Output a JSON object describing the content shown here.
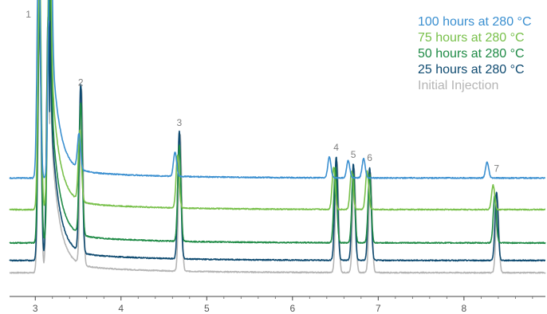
{
  "chart_data": {
    "type": "line",
    "title": "",
    "xlabel": "",
    "ylabel": "",
    "xlim": [
      2.7,
      8.95
    ],
    "x_ticks": [
      3,
      4,
      5,
      6,
      7,
      8
    ],
    "grid": false,
    "legend_placement": "top-right",
    "peak_labels": [
      {
        "label": "1",
        "x": 3.05
      },
      {
        "label": "2",
        "x": 3.53
      },
      {
        "label": "3",
        "x": 4.68
      },
      {
        "label": "4",
        "x": 6.51
      },
      {
        "label": "5",
        "x": 6.71
      },
      {
        "label": "6",
        "x": 6.9
      },
      {
        "label": "7",
        "x": 8.38
      }
    ],
    "series": [
      {
        "name": "100 hours at 280 °C",
        "color": "#3a8fd0",
        "baseline_offset": 0.63,
        "peaks": [
          [
            3.04,
            1.4
          ],
          [
            3.17,
            1.4
          ],
          [
            3.51,
            0.2
          ],
          [
            4.63,
            0.14
          ],
          [
            6.43,
            0.12
          ],
          [
            6.65,
            0.1
          ],
          [
            6.83,
            0.11
          ],
          [
            8.27,
            0.09
          ]
        ]
      },
      {
        "name": "75 hours at 280 °C",
        "color": "#78c04a",
        "baseline_offset": 0.45,
        "peaks": [
          [
            3.05,
            1.4
          ],
          [
            3.16,
            1.4
          ],
          [
            3.52,
            0.4
          ],
          [
            4.66,
            0.3
          ],
          [
            6.48,
            0.24
          ],
          [
            6.69,
            0.22
          ],
          [
            6.87,
            0.22
          ],
          [
            8.34,
            0.14
          ]
        ]
      },
      {
        "name": "50 hours at 280 °C",
        "color": "#1e8a45",
        "baseline_offset": 0.26,
        "peaks": [
          [
            3.05,
            1.4
          ],
          [
            3.16,
            1.4
          ],
          [
            3.53,
            0.75
          ],
          [
            4.68,
            0.55
          ],
          [
            6.5,
            0.43
          ],
          [
            6.71,
            0.39
          ],
          [
            6.9,
            0.39
          ],
          [
            8.36,
            0.27
          ]
        ]
      },
      {
        "name": "25 hours at 280 °C",
        "color": "#0e4a70",
        "baseline_offset": 0.16,
        "peaks": [
          [
            3.05,
            1.4
          ],
          [
            3.15,
            1.4
          ],
          [
            3.53,
            0.96
          ],
          [
            4.68,
            0.73
          ],
          [
            6.51,
            0.59
          ],
          [
            6.71,
            0.55
          ],
          [
            6.9,
            0.53
          ],
          [
            8.38,
            0.39
          ]
        ]
      },
      {
        "name": "Initial Injection",
        "color": "#b5b5b5",
        "baseline_offset": 0.09,
        "peaks": [
          [
            3.05,
            1.4
          ],
          [
            3.15,
            1.4
          ],
          [
            3.54,
            1.0
          ],
          [
            4.69,
            0.78
          ],
          [
            6.52,
            0.63
          ],
          [
            6.72,
            0.59
          ],
          [
            6.91,
            0.57
          ],
          [
            8.39,
            0.42
          ]
        ]
      }
    ]
  }
}
